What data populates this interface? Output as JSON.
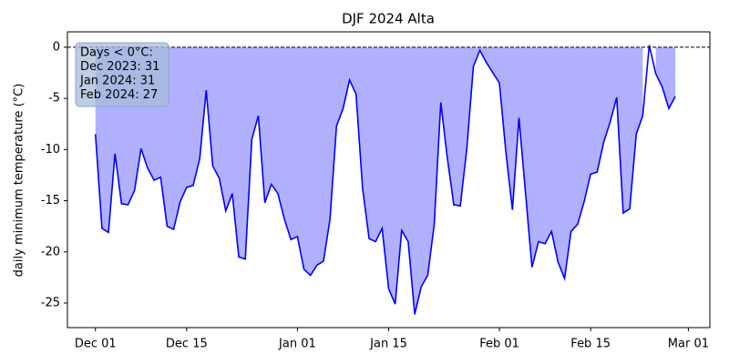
{
  "chart_data": {
    "type": "line",
    "title": "DJF 2024 Alta",
    "ylabel": "daily minimum temperature (°C)",
    "x": [
      0,
      1,
      2,
      3,
      4,
      5,
      6,
      7,
      8,
      9,
      10,
      11,
      12,
      13,
      14,
      15,
      16,
      17,
      18,
      19,
      20,
      21,
      22,
      23,
      24,
      25,
      26,
      27,
      28,
      29,
      30,
      31,
      32,
      33,
      34,
      35,
      36,
      37,
      38,
      39,
      40,
      41,
      42,
      43,
      44,
      45,
      46,
      47,
      48,
      49,
      50,
      51,
      52,
      53,
      54,
      55,
      56,
      57,
      58,
      59,
      60,
      61,
      62,
      63,
      64,
      65,
      66,
      67,
      68,
      69,
      70,
      71,
      72,
      73,
      74,
      75,
      76,
      77,
      78,
      79,
      80,
      81,
      82,
      83,
      84,
      85,
      86,
      87,
      88,
      89
    ],
    "series": [
      {
        "name": "daily minimum temperature",
        "color": "#0000ff",
        "fill_color": "#b0b0ff",
        "values": [
          -8.5,
          -17.7,
          -18.1,
          -10.4,
          -15.3,
          -15.4,
          -14.0,
          -9.9,
          -11.8,
          -13.0,
          -12.7,
          -17.5,
          -17.8,
          -15.1,
          -13.7,
          -13.5,
          -10.9,
          -4.2,
          -11.6,
          -12.8,
          -16.0,
          -14.3,
          -20.5,
          -20.7,
          -9.0,
          -6.7,
          -15.2,
          -13.4,
          -14.3,
          -16.8,
          -18.8,
          -18.5,
          -21.7,
          -22.3,
          -21.3,
          -20.9,
          -16.8,
          -7.7,
          -6.0,
          -3.2,
          -4.6,
          -13.8,
          -18.7,
          -19.0,
          -17.7,
          -23.6,
          -25.1,
          -17.9,
          -19.0,
          -26.1,
          -23.4,
          -22.3,
          -17.3,
          -5.4,
          -10.8,
          -15.4,
          -15.5,
          -9.9,
          -1.9,
          -0.3,
          -1.5,
          -2.5,
          -3.5,
          -10.3,
          -15.9,
          -6.9,
          -14.2,
          -21.5,
          -19.0,
          -19.2,
          -18.0,
          -21.0,
          -22.6,
          -18.0,
          -17.3,
          -15.1,
          -12.4,
          -12.2,
          -9.3,
          -7.3,
          -4.9,
          -16.2,
          -15.8,
          -8.5,
          -6.7,
          0.2,
          -2.6,
          -3.9,
          -6.0,
          -4.8
        ]
      }
    ],
    "hline": 0,
    "xlim": [
      -4.3,
      94.3
    ],
    "xticks": [
      {
        "value": 0,
        "label": "Dec 01"
      },
      {
        "value": 14,
        "label": "Dec 15"
      },
      {
        "value": 31,
        "label": "Jan 01"
      },
      {
        "value": 45,
        "label": "Jan 15"
      },
      {
        "value": 62,
        "label": "Feb 01"
      },
      {
        "value": 76,
        "label": "Feb 15"
      },
      {
        "value": 91,
        "label": "Mar 01"
      }
    ],
    "ylim": [
      -27.4,
      1.5
    ],
    "yticks": [
      0,
      -5,
      -10,
      -15,
      -20,
      -25
    ],
    "annotation": [
      "Days < 0°C:",
      "Dec 2023: 31",
      "Jan 2024: 31",
      "Feb 2024: 27"
    ]
  }
}
